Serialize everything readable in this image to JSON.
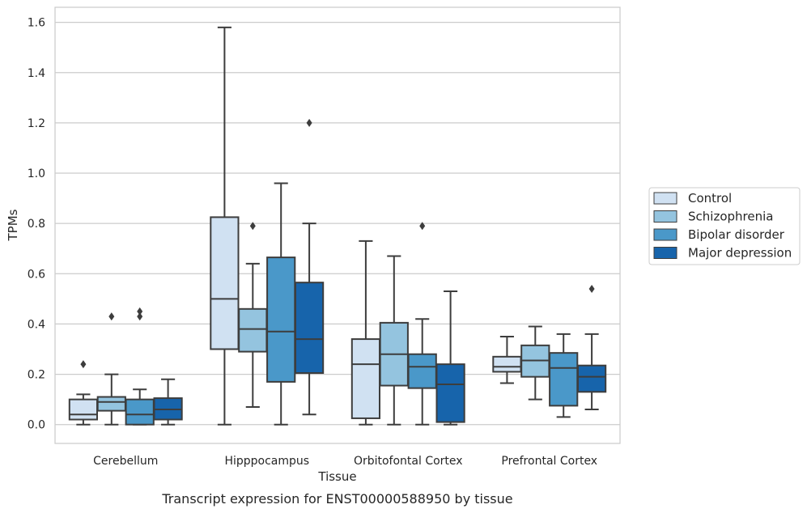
{
  "chart_data": {
    "type": "box",
    "caption": "Transcript expression for ENST00000588950 by tissue",
    "xlabel": "Tissue",
    "ylabel": "TPMs",
    "ylim": [
      -0.075,
      1.66
    ],
    "yticks": [
      "0.0",
      "0.2",
      "0.4",
      "0.6",
      "0.8",
      "1.0",
      "1.2",
      "1.4",
      "1.6"
    ],
    "categories": [
      "Cerebellum",
      "Hipppocampus",
      "Orbitofontal Cortex",
      "Prefrontal Cortex"
    ],
    "grid": "horizontal",
    "legend_position": "right",
    "series": [
      {
        "name": "Control",
        "color": "#d0e1f2",
        "boxes": [
          {
            "whislo": 0.0,
            "q1": 0.02,
            "med": 0.04,
            "q3": 0.1,
            "whishi": 0.12,
            "fliers": [
              0.24
            ]
          },
          {
            "whislo": 0.0,
            "q1": 0.3,
            "med": 0.5,
            "q3": 0.825,
            "whishi": 1.58,
            "fliers": []
          },
          {
            "whislo": 0.0,
            "q1": 0.025,
            "med": 0.24,
            "q3": 0.34,
            "whishi": 0.73,
            "fliers": []
          },
          {
            "whislo": 0.165,
            "q1": 0.21,
            "med": 0.23,
            "q3": 0.27,
            "whishi": 0.35,
            "fliers": []
          }
        ]
      },
      {
        "name": "Schizophrenia",
        "color": "#94c4df",
        "boxes": [
          {
            "whislo": 0.0,
            "q1": 0.055,
            "med": 0.09,
            "q3": 0.11,
            "whishi": 0.2,
            "fliers": [
              0.43
            ]
          },
          {
            "whislo": 0.07,
            "q1": 0.29,
            "med": 0.38,
            "q3": 0.46,
            "whishi": 0.64,
            "fliers": [
              0.79
            ]
          },
          {
            "whislo": 0.0,
            "q1": 0.155,
            "med": 0.28,
            "q3": 0.405,
            "whishi": 0.67,
            "fliers": []
          },
          {
            "whislo": 0.1,
            "q1": 0.19,
            "med": 0.255,
            "q3": 0.315,
            "whishi": 0.39,
            "fliers": []
          }
        ]
      },
      {
        "name": "Bipolar disorder",
        "color": "#4a98c9",
        "boxes": [
          {
            "whislo": 0.0,
            "q1": 0.0,
            "med": 0.04,
            "q3": 0.1,
            "whishi": 0.14,
            "fliers": [
              0.43,
              0.45
            ]
          },
          {
            "whislo": 0.0,
            "q1": 0.17,
            "med": 0.37,
            "q3": 0.665,
            "whishi": 0.96,
            "fliers": []
          },
          {
            "whislo": 0.0,
            "q1": 0.145,
            "med": 0.23,
            "q3": 0.28,
            "whishi": 0.42,
            "fliers": [
              0.79
            ]
          },
          {
            "whislo": 0.03,
            "q1": 0.075,
            "med": 0.225,
            "q3": 0.285,
            "whishi": 0.36,
            "fliers": []
          }
        ]
      },
      {
        "name": "Major depression",
        "color": "#1764ab",
        "boxes": [
          {
            "whislo": 0.0,
            "q1": 0.02,
            "med": 0.06,
            "q3": 0.105,
            "whishi": 0.18,
            "fliers": []
          },
          {
            "whislo": 0.04,
            "q1": 0.205,
            "med": 0.34,
            "q3": 0.565,
            "whishi": 0.8,
            "fliers": [
              1.2
            ]
          },
          {
            "whislo": 0.0,
            "q1": 0.01,
            "med": 0.16,
            "q3": 0.24,
            "whishi": 0.53,
            "fliers": []
          },
          {
            "whislo": 0.06,
            "q1": 0.13,
            "med": 0.19,
            "q3": 0.235,
            "whishi": 0.36,
            "fliers": [
              0.54
            ]
          }
        ]
      }
    ]
  }
}
